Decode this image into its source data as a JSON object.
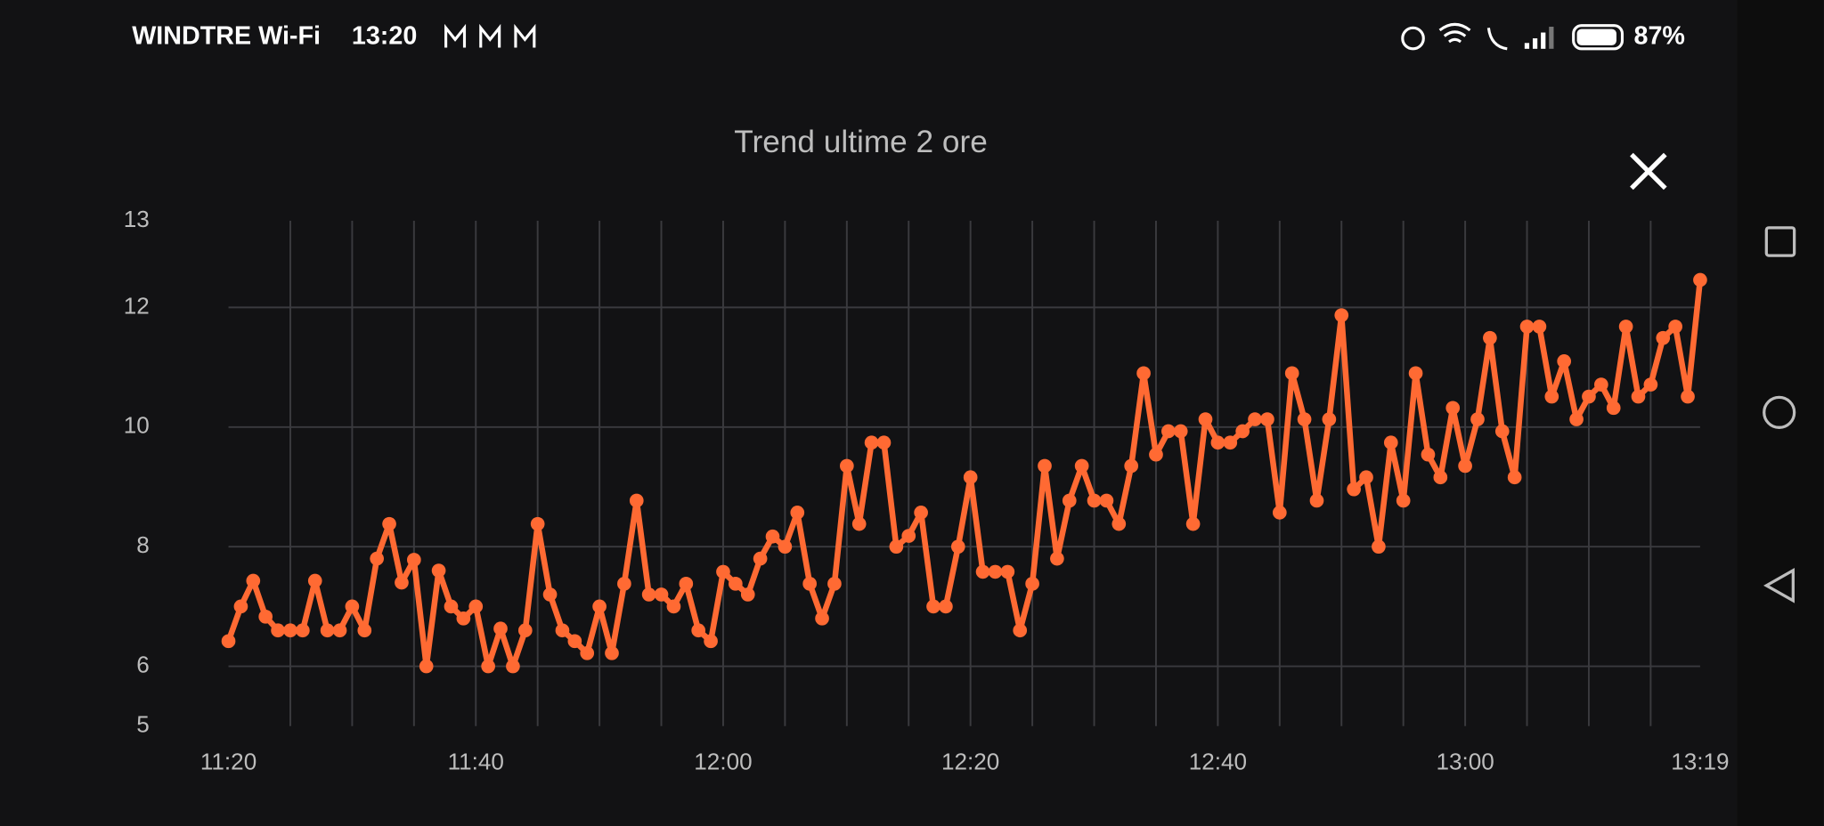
{
  "status_bar": {
    "carrier": "WINDTRE Wi-Fi",
    "time": "13:20",
    "battery": "87%"
  },
  "chart_data": {
    "type": "line",
    "title": "Trend ultime  2 ore",
    "x": [
      "11:20",
      "11:21",
      "11:22",
      "11:23",
      "11:24",
      "11:25",
      "11:26",
      "11:27",
      "11:28",
      "11:29",
      "11:30",
      "11:31",
      "11:32",
      "11:33",
      "11:34",
      "11:35",
      "11:36",
      "11:37",
      "11:38",
      "11:39",
      "11:40",
      "11:41",
      "11:42",
      "11:43",
      "11:44",
      "11:45",
      "11:46",
      "11:47",
      "11:48",
      "11:49",
      "11:50",
      "11:51",
      "11:52",
      "11:53",
      "11:54",
      "11:55",
      "11:56",
      "11:57",
      "11:58",
      "11:59",
      "12:00",
      "12:01",
      "12:02",
      "12:03",
      "12:04",
      "12:05",
      "12:06",
      "12:07",
      "12:08",
      "12:09",
      "12:10",
      "12:11",
      "12:12",
      "12:13",
      "12:14",
      "12:15",
      "12:16",
      "12:17",
      "12:18",
      "12:19",
      "12:20",
      "12:21",
      "12:22",
      "12:23",
      "12:24",
      "12:25",
      "12:26",
      "12:27",
      "12:28",
      "12:29",
      "12:30",
      "12:31",
      "12:32",
      "12:33",
      "12:34",
      "12:35",
      "12:36",
      "12:37",
      "12:38",
      "12:39",
      "12:40",
      "12:41",
      "12:42",
      "12:43",
      "12:44",
      "12:45",
      "12:46",
      "12:47",
      "12:48",
      "12:49",
      "12:50",
      "12:51",
      "12:52",
      "12:53",
      "12:54",
      "12:55",
      "12:56",
      "12:57",
      "12:58",
      "12:59",
      "13:00",
      "13:01",
      "13:02",
      "13:03",
      "13:04",
      "13:05",
      "13:06",
      "13:07",
      "13:08",
      "13:09",
      "13:10",
      "13:11",
      "13:12",
      "13:13",
      "13:14",
      "13:15",
      "13:16",
      "13:17",
      "13:18",
      "13:19"
    ],
    "series": [
      {
        "color": "#ff6a33",
        "values": [
          6.42,
          7.0,
          7.43,
          6.83,
          6.6,
          6.6,
          6.6,
          7.43,
          6.6,
          6.6,
          7.0,
          6.6,
          7.8,
          8.38,
          7.4,
          7.78,
          6.0,
          7.6,
          7.0,
          6.8,
          7.0,
          6.0,
          6.63,
          6.0,
          6.6,
          8.38,
          7.2,
          6.6,
          6.42,
          6.22,
          7.0,
          6.22,
          7.38,
          8.77,
          7.2,
          7.2,
          7.0,
          7.38,
          6.6,
          6.42,
          7.58,
          7.38,
          7.2,
          7.8,
          8.17,
          8.0,
          8.57,
          7.38,
          6.8,
          7.38,
          9.35,
          8.38,
          9.74,
          9.74,
          8.0,
          8.18,
          8.57,
          7.0,
          7.0,
          8.0,
          9.16,
          7.58,
          7.58,
          7.58,
          6.6,
          7.38,
          9.35,
          7.8,
          8.77,
          9.35,
          8.77,
          8.77,
          8.38,
          9.35,
          10.9,
          9.54,
          9.93,
          9.93,
          8.38,
          10.13,
          9.74,
          9.74,
          9.93,
          10.13,
          10.13,
          8.57,
          10.9,
          10.13,
          8.77,
          10.13,
          11.87,
          8.96,
          9.16,
          8.0,
          9.74,
          8.77,
          10.9,
          9.54,
          9.16,
          10.32,
          9.35,
          10.13,
          11.49,
          9.93,
          9.16,
          11.68,
          11.68,
          10.51,
          11.1,
          10.13,
          10.51,
          10.71,
          10.32,
          11.68,
          10.51,
          10.71,
          11.49,
          11.68,
          10.51,
          12.46
        ]
      }
    ],
    "xlim": [
      "11:20",
      "13:19"
    ],
    "xticks": [
      "11:20",
      "11:40",
      "12:00",
      "12:20",
      "12:40",
      "13:00",
      "13:19"
    ],
    "ylim": [
      5,
      13.45
    ],
    "yticks": [
      {
        "value": 13.45,
        "label": "13"
      },
      12,
      10,
      8,
      6,
      5
    ],
    "grid": true
  }
}
